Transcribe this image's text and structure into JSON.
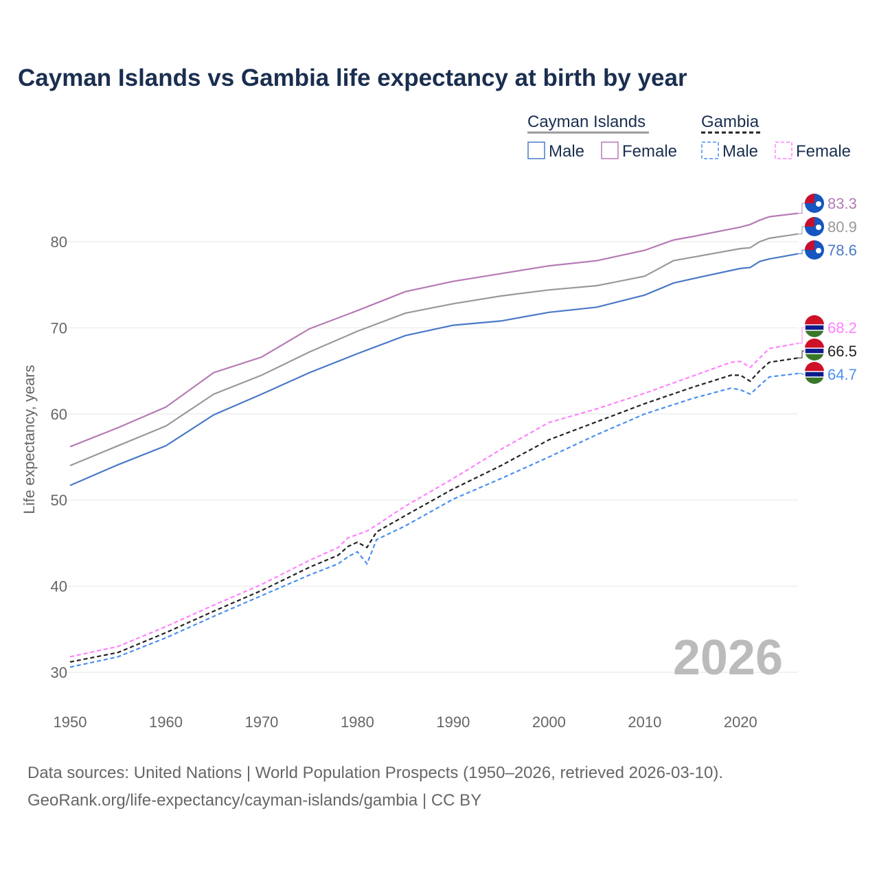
{
  "chart_data": {
    "type": "line",
    "title": "Cayman Islands vs Gambia life expectancy at birth by year",
    "ylabel": "Life expectancy, years",
    "xlabel": "",
    "xlim": [
      1950,
      2026
    ],
    "ylim": [
      30,
      83.3
    ],
    "xticks": [
      1950,
      1960,
      1970,
      1980,
      1990,
      2000,
      2010,
      2020
    ],
    "yticks": [
      30,
      40,
      50,
      60,
      70,
      80
    ],
    "year_watermark": "2026",
    "legend": {
      "groups": [
        {
          "name": "Cayman Islands",
          "items": [
            "Male",
            "Female"
          ]
        },
        {
          "name": "Gambia",
          "items": [
            "Male",
            "Female"
          ]
        }
      ],
      "placement": "top-right"
    },
    "series": [
      {
        "name": "Cayman Islands Female",
        "country": "cayman",
        "color": "#b57ab5",
        "dashed": false,
        "end_label": "83.3",
        "x": [
          1950,
          1955,
          1960,
          1965,
          1970,
          1975,
          1980,
          1985,
          1990,
          1995,
          2000,
          2005,
          2010,
          2013,
          2015,
          2020,
          2021,
          2022,
          2023,
          2026
        ],
        "y": [
          56.2,
          58.4,
          60.8,
          64.8,
          66.6,
          69.9,
          72.0,
          74.2,
          75.4,
          76.3,
          77.2,
          77.8,
          79.0,
          80.2,
          80.6,
          81.7,
          82.0,
          82.5,
          82.9,
          83.3
        ]
      },
      {
        "name": "Cayman Islands",
        "country": "cayman",
        "color": "#999999",
        "dashed": false,
        "end_label": "80.9",
        "x": [
          1950,
          1955,
          1960,
          1965,
          1970,
          1975,
          1980,
          1985,
          1990,
          1995,
          2000,
          2005,
          2010,
          2013,
          2015,
          2020,
          2021,
          2022,
          2023,
          2026
        ],
        "y": [
          54.0,
          56.3,
          58.6,
          62.3,
          64.5,
          67.2,
          69.6,
          71.7,
          72.8,
          73.7,
          74.4,
          74.9,
          76.0,
          77.8,
          78.2,
          79.2,
          79.3,
          80.0,
          80.4,
          80.9
        ]
      },
      {
        "name": "Cayman Islands Male",
        "country": "cayman",
        "color": "#4a78c8",
        "dashed": false,
        "end_label": "78.6",
        "x": [
          1950,
          1955,
          1960,
          1965,
          1970,
          1975,
          1980,
          1985,
          1990,
          1995,
          2000,
          2005,
          2010,
          2013,
          2015,
          2020,
          2021,
          2022,
          2023,
          2026
        ],
        "y": [
          51.7,
          54.1,
          56.3,
          59.9,
          62.3,
          64.8,
          67.0,
          69.1,
          70.3,
          70.8,
          71.8,
          72.4,
          73.8,
          75.2,
          75.7,
          76.9,
          77.0,
          77.7,
          78.0,
          78.6
        ]
      },
      {
        "name": "Gambia Female",
        "country": "gambia",
        "color": "#ff80ff",
        "dashed": true,
        "end_label": "68.2",
        "x": [
          1950,
          1955,
          1960,
          1965,
          1970,
          1975,
          1978,
          1979,
          1980,
          1981,
          1982,
          1985,
          1990,
          1995,
          2000,
          2005,
          2010,
          2015,
          2019,
          2020,
          2021,
          2022,
          2023,
          2026
        ],
        "y": [
          31.8,
          33.0,
          35.3,
          37.8,
          40.2,
          43.0,
          44.5,
          45.6,
          46.0,
          46.4,
          47.1,
          49.3,
          52.5,
          55.9,
          59.0,
          60.6,
          62.4,
          64.4,
          66.0,
          66.1,
          65.4,
          66.5,
          67.6,
          68.2
        ]
      },
      {
        "name": "Gambia",
        "country": "gambia",
        "color": "#222222",
        "dashed": true,
        "end_label": "66.5",
        "x": [
          1950,
          1955,
          1960,
          1965,
          1970,
          1975,
          1978,
          1979,
          1980,
          1981,
          1982,
          1985,
          1990,
          1995,
          2000,
          2005,
          2010,
          2015,
          2019,
          2020,
          2021,
          2022,
          2023,
          2026
        ],
        "y": [
          31.2,
          32.3,
          34.6,
          37.1,
          39.5,
          42.2,
          43.6,
          44.6,
          45.1,
          44.5,
          46.3,
          48.2,
          51.3,
          54.0,
          57.0,
          59.1,
          61.2,
          63.1,
          64.5,
          64.5,
          63.8,
          65.0,
          66.0,
          66.5
        ]
      },
      {
        "name": "Gambia Male",
        "country": "gambia",
        "color": "#4a8ff0",
        "dashed": true,
        "end_label": "64.7",
        "x": [
          1950,
          1955,
          1960,
          1965,
          1970,
          1975,
          1978,
          1979,
          1980,
          1981,
          1982,
          1985,
          1990,
          1995,
          2000,
          2005,
          2010,
          2015,
          2019,
          2020,
          2021,
          2022,
          2023,
          2026
        ],
        "y": [
          30.6,
          31.8,
          34.0,
          36.5,
          38.9,
          41.3,
          42.6,
          43.4,
          44.0,
          42.6,
          45.4,
          47.0,
          50.1,
          52.5,
          55.0,
          57.6,
          60.0,
          61.8,
          63.0,
          62.8,
          62.3,
          63.3,
          64.3,
          64.7
        ]
      }
    ]
  },
  "footer": {
    "line1": "Data sources: United Nations | World Population Prospects (1950–2026, retrieved 2026-03-10).",
    "line2": "GeoRank.org/life-expectancy/cayman-islands/gambia | CC BY"
  }
}
